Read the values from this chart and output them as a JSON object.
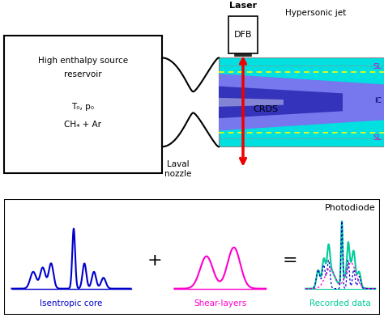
{
  "bg_color": "#ffffff",
  "reservoir_text1": "High enthalpy source",
  "reservoir_text2": "reservoir",
  "reservoir_text3": "T₀, p₀",
  "reservoir_text4": "CH₄ + Ar",
  "laser_label": "Laser",
  "dfb_label": "DFB",
  "hypersonic_label": "Hypersonic jet",
  "sl_label": "SL",
  "ic_label": "IC",
  "crds_label": "CRDS",
  "laval_label": "Laval\nnozzle",
  "photodiode_label": "Photodiode",
  "plus_label": "+",
  "equals_label": "=",
  "isentropic_label": "Isentropic core",
  "shear_label": "Shear-layers",
  "recorded_label": "Recorded data",
  "colors": {
    "reservoir_box": "#000000",
    "jet_cyan": "#00e0e0",
    "jet_blue_inner": "#5555dd",
    "jet_blue_center": "#2222aa",
    "jet_yellow": "#dddd00",
    "laser_red": "#ee0000",
    "SL_color": "#cc00cc",
    "IC_color": "#000066",
    "isentropic_blue": "#0000cc",
    "shear_magenta": "#ff00cc",
    "recorded_cyan": "#00cc99",
    "recorded_dotted_blue": "#0000cc",
    "recorded_dotted_magenta": "#ff00cc"
  }
}
